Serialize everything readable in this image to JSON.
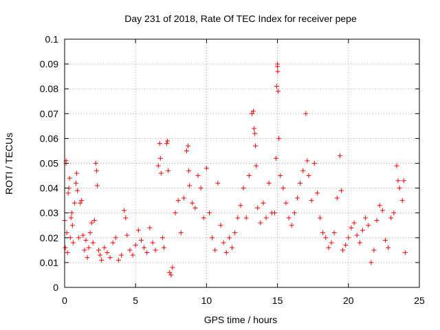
{
  "chart_data": {
    "type": "scatter",
    "title": "Day 231 of 2018, Rate Of TEC Index for receiver pepe",
    "xlabel": "GPS time / hours",
    "ylabel": "ROTI / TECUs",
    "xlim": [
      0,
      25
    ],
    "ylim": [
      0,
      0.1
    ],
    "xticks": [
      {
        "value": 0,
        "label": "0"
      },
      {
        "value": 5,
        "label": "5"
      },
      {
        "value": 10,
        "label": "10"
      },
      {
        "value": 15,
        "label": "15"
      },
      {
        "value": 20,
        "label": "20"
      },
      {
        "value": 25,
        "label": "25"
      }
    ],
    "yticks": [
      {
        "value": 0,
        "label": "0"
      },
      {
        "value": 0.01,
        "label": "0.01"
      },
      {
        "value": 0.02,
        "label": "0.02"
      },
      {
        "value": 0.03,
        "label": "0.03"
      },
      {
        "value": 0.04,
        "label": "0.04"
      },
      {
        "value": 0.05,
        "label": "0.05"
      },
      {
        "value": 0.06,
        "label": "0.06"
      },
      {
        "value": 0.07,
        "label": "0.07"
      },
      {
        "value": 0.08,
        "label": "0.08"
      },
      {
        "value": 0.09,
        "label": "0.09"
      },
      {
        "value": 0.1,
        "label": "0.1"
      }
    ],
    "grid": true,
    "marker": "+",
    "color": "#ff0000",
    "series": [
      {
        "name": "ROTI",
        "points": [
          [
            0.0,
            0.027
          ],
          [
            0.05,
            0.016
          ],
          [
            0.1,
            0.051
          ],
          [
            0.1,
            0.05
          ],
          [
            0.15,
            0.022
          ],
          [
            0.2,
            0.014
          ],
          [
            0.25,
            0.038
          ],
          [
            0.3,
            0.04
          ],
          [
            0.35,
            0.044
          ],
          [
            0.4,
            0.02
          ],
          [
            0.45,
            0.028
          ],
          [
            0.5,
            0.03
          ],
          [
            0.55,
            0.025
          ],
          [
            0.6,
            0.018
          ],
          [
            0.7,
            0.034
          ],
          [
            0.8,
            0.042
          ],
          [
            0.85,
            0.046
          ],
          [
            0.9,
            0.039
          ],
          [
            1.0,
            0.02
          ],
          [
            1.1,
            0.034
          ],
          [
            1.2,
            0.035
          ],
          [
            1.3,
            0.021
          ],
          [
            1.4,
            0.015
          ],
          [
            1.5,
            0.019
          ],
          [
            1.6,
            0.012
          ],
          [
            1.7,
            0.016
          ],
          [
            1.8,
            0.022
          ],
          [
            1.9,
            0.026
          ],
          [
            2.0,
            0.018
          ],
          [
            2.1,
            0.027
          ],
          [
            2.2,
            0.05
          ],
          [
            2.25,
            0.047
          ],
          [
            2.3,
            0.041
          ],
          [
            2.4,
            0.015
          ],
          [
            2.5,
            0.013
          ],
          [
            2.6,
            0.011
          ],
          [
            2.8,
            0.016
          ],
          [
            3.0,
            0.014
          ],
          [
            3.2,
            0.012
          ],
          [
            3.4,
            0.018
          ],
          [
            3.6,
            0.02
          ],
          [
            3.8,
            0.011
          ],
          [
            4.0,
            0.013
          ],
          [
            4.2,
            0.031
          ],
          [
            4.3,
            0.028
          ],
          [
            4.4,
            0.021
          ],
          [
            4.6,
            0.015
          ],
          [
            4.8,
            0.013
          ],
          [
            5.0,
            0.017
          ],
          [
            5.2,
            0.023
          ],
          [
            5.4,
            0.019
          ],
          [
            5.6,
            0.016
          ],
          [
            5.8,
            0.014
          ],
          [
            6.0,
            0.024
          ],
          [
            6.2,
            0.018
          ],
          [
            6.4,
            0.015
          ],
          [
            6.6,
            0.049
          ],
          [
            6.7,
            0.058
          ],
          [
            6.75,
            0.052
          ],
          [
            6.8,
            0.046
          ],
          [
            6.9,
            0.02
          ],
          [
            7.0,
            0.016
          ],
          [
            7.2,
            0.058
          ],
          [
            7.25,
            0.059
          ],
          [
            7.3,
            0.047
          ],
          [
            7.4,
            0.006
          ],
          [
            7.5,
            0.005
          ],
          [
            7.6,
            0.008
          ],
          [
            7.8,
            0.03
          ],
          [
            8.0,
            0.035
          ],
          [
            8.2,
            0.022
          ],
          [
            8.4,
            0.036
          ],
          [
            8.6,
            0.055
          ],
          [
            8.7,
            0.057
          ],
          [
            8.75,
            0.047
          ],
          [
            8.8,
            0.041
          ],
          [
            9.0,
            0.034
          ],
          [
            9.2,
            0.032
          ],
          [
            9.4,
            0.045
          ],
          [
            9.6,
            0.04
          ],
          [
            9.8,
            0.028
          ],
          [
            10.0,
            0.048
          ],
          [
            10.2,
            0.03
          ],
          [
            10.4,
            0.02
          ],
          [
            10.6,
            0.015
          ],
          [
            10.8,
            0.042
          ],
          [
            11.0,
            0.025
          ],
          [
            11.2,
            0.018
          ],
          [
            11.4,
            0.014
          ],
          [
            11.6,
            0.02
          ],
          [
            11.8,
            0.016
          ],
          [
            12.0,
            0.022
          ],
          [
            12.2,
            0.028
          ],
          [
            12.4,
            0.033
          ],
          [
            12.6,
            0.04
          ],
          [
            12.8,
            0.028
          ],
          [
            13.0,
            0.045
          ],
          [
            13.2,
            0.07
          ],
          [
            13.3,
            0.071
          ],
          [
            13.35,
            0.064
          ],
          [
            13.4,
            0.062
          ],
          [
            13.45,
            0.057
          ],
          [
            13.5,
            0.049
          ],
          [
            13.6,
            0.032
          ],
          [
            13.8,
            0.026
          ],
          [
            14.0,
            0.034
          ],
          [
            14.2,
            0.028
          ],
          [
            14.4,
            0.042
          ],
          [
            14.6,
            0.03
          ],
          [
            14.8,
            0.03
          ],
          [
            14.9,
            0.052
          ],
          [
            14.95,
            0.081
          ],
          [
            15.0,
            0.09
          ],
          [
            15.0,
            0.089
          ],
          [
            15.02,
            0.087
          ],
          [
            15.05,
            0.079
          ],
          [
            15.1,
            0.06
          ],
          [
            15.2,
            0.045
          ],
          [
            15.4,
            0.04
          ],
          [
            15.6,
            0.034
          ],
          [
            15.8,
            0.028
          ],
          [
            16.0,
            0.025
          ],
          [
            16.2,
            0.03
          ],
          [
            16.4,
            0.036
          ],
          [
            16.6,
            0.042
          ],
          [
            16.8,
            0.047
          ],
          [
            17.0,
            0.07
          ],
          [
            17.1,
            0.051
          ],
          [
            17.2,
            0.045
          ],
          [
            17.4,
            0.035
          ],
          [
            17.6,
            0.05
          ],
          [
            17.8,
            0.038
          ],
          [
            18.0,
            0.028
          ],
          [
            18.2,
            0.022
          ],
          [
            18.4,
            0.02
          ],
          [
            18.6,
            0.016
          ],
          [
            18.8,
            0.018
          ],
          [
            19.0,
            0.022
          ],
          [
            19.2,
            0.036
          ],
          [
            19.4,
            0.053
          ],
          [
            19.5,
            0.039
          ],
          [
            19.6,
            0.015
          ],
          [
            19.8,
            0.017
          ],
          [
            20.0,
            0.02
          ],
          [
            20.2,
            0.024
          ],
          [
            20.4,
            0.026
          ],
          [
            20.6,
            0.021
          ],
          [
            20.8,
            0.018
          ],
          [
            21.0,
            0.023
          ],
          [
            21.2,
            0.028
          ],
          [
            21.4,
            0.025
          ],
          [
            21.6,
            0.01
          ],
          [
            21.8,
            0.015
          ],
          [
            22.0,
            0.027
          ],
          [
            22.2,
            0.033
          ],
          [
            22.4,
            0.031
          ],
          [
            22.6,
            0.019
          ],
          [
            22.8,
            0.016
          ],
          [
            23.0,
            0.028
          ],
          [
            23.2,
            0.03
          ],
          [
            23.4,
            0.049
          ],
          [
            23.5,
            0.043
          ],
          [
            23.6,
            0.04
          ],
          [
            23.8,
            0.035
          ],
          [
            23.9,
            0.043
          ],
          [
            24.0,
            0.014
          ]
        ]
      }
    ]
  }
}
